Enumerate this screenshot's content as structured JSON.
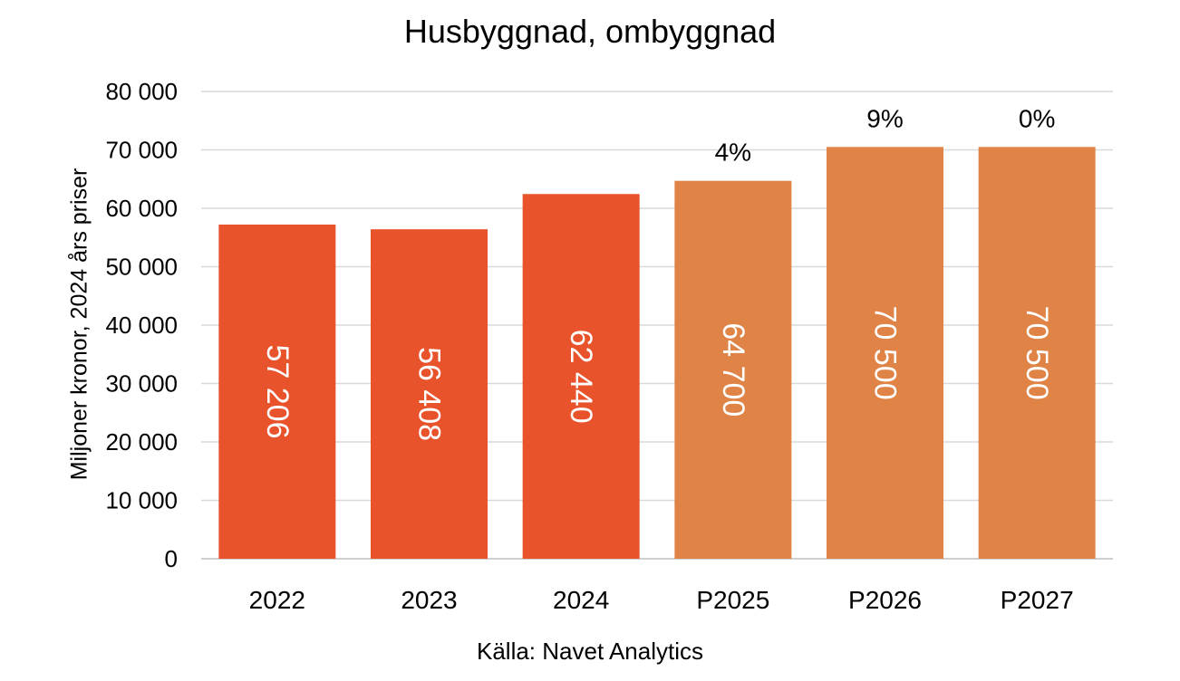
{
  "chart_data": {
    "type": "bar",
    "title": "Husbyggnad, ombyggnad",
    "ylabel": "Miljoner kronor, 2024 års priser",
    "xlabel": "",
    "source": "Källa: Navet Analytics",
    "categories": [
      "2022",
      "2023",
      "2024",
      "P2025",
      "P2026",
      "P2027"
    ],
    "values": [
      57206,
      56408,
      62440,
      64700,
      70500,
      70500
    ],
    "value_labels": [
      "57 206",
      "56 408",
      "62 440",
      "64 700",
      "70 500",
      "70 500"
    ],
    "change_labels": [
      "",
      "",
      "",
      "4%",
      "9%",
      "0%"
    ],
    "bar_colors": [
      "#E8532B",
      "#E8532B",
      "#E8532B",
      "#DF8446",
      "#DF8446",
      "#DF8446"
    ],
    "ylim": [
      0,
      80000
    ],
    "yticks": [
      0,
      10000,
      20000,
      30000,
      40000,
      50000,
      60000,
      70000,
      80000
    ],
    "ytick_labels": [
      "0",
      "10 000",
      "20 000",
      "30 000",
      "40 000",
      "50 000",
      "60 000",
      "70 000",
      "80 000"
    ],
    "grid": true,
    "grid_color": "#D9D9D9",
    "legend": "none"
  }
}
